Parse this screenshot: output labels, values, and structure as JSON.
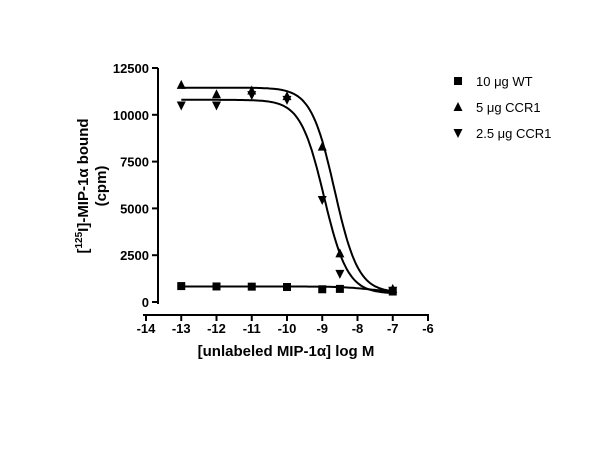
{
  "chart_data": {
    "type": "scatter",
    "xlabel": "[unlabeled MIP-1α] log M",
    "ylabel_line1": "[125I]-MIP-1α bound",
    "ylabel_line2": "(cpm)",
    "xlim": [
      -14,
      -6
    ],
    "ylim": [
      0,
      12500
    ],
    "xticks": [
      -14,
      -13,
      -12,
      -11,
      -10,
      -9,
      -8,
      -7,
      -6
    ],
    "yticks": [
      0,
      2500,
      5000,
      7500,
      10000,
      12500
    ],
    "grid": false,
    "legend_position": "top-right",
    "series": [
      {
        "name": "10 μg WT",
        "marker": "square",
        "points": [
          [
            -13,
            850
          ],
          [
            -12,
            830
          ],
          [
            -11,
            820
          ],
          [
            -10,
            800
          ],
          [
            -9,
            680
          ],
          [
            -8.5,
            700
          ],
          [
            -7,
            560
          ]
        ],
        "fit": {
          "top": 830,
          "bottom": 500,
          "log_ic50": -7.6,
          "hill": -1
        }
      },
      {
        "name": "5 μg CCR1",
        "marker": "triangle-up",
        "points": [
          [
            -13,
            11600
          ],
          [
            -12,
            11100
          ],
          [
            -11,
            11300
          ],
          [
            -10,
            11000
          ],
          [
            -9,
            8300
          ],
          [
            -8.5,
            2600
          ],
          [
            -7,
            700
          ]
        ],
        "fit": {
          "top": 11450,
          "bottom": 500,
          "log_ic50": -8.65,
          "hill": -1.3
        }
      },
      {
        "name": "2.5 μg CCR1",
        "marker": "triangle-down",
        "points": [
          [
            -13,
            10500
          ],
          [
            -12,
            10500
          ],
          [
            -11,
            11050
          ],
          [
            -10,
            10800
          ],
          [
            -9,
            5450
          ],
          [
            -8.5,
            1500
          ],
          [
            -7,
            600
          ]
        ],
        "fit": {
          "top": 10800,
          "bottom": 450,
          "log_ic50": -8.95,
          "hill": -1.3
        }
      }
    ]
  }
}
